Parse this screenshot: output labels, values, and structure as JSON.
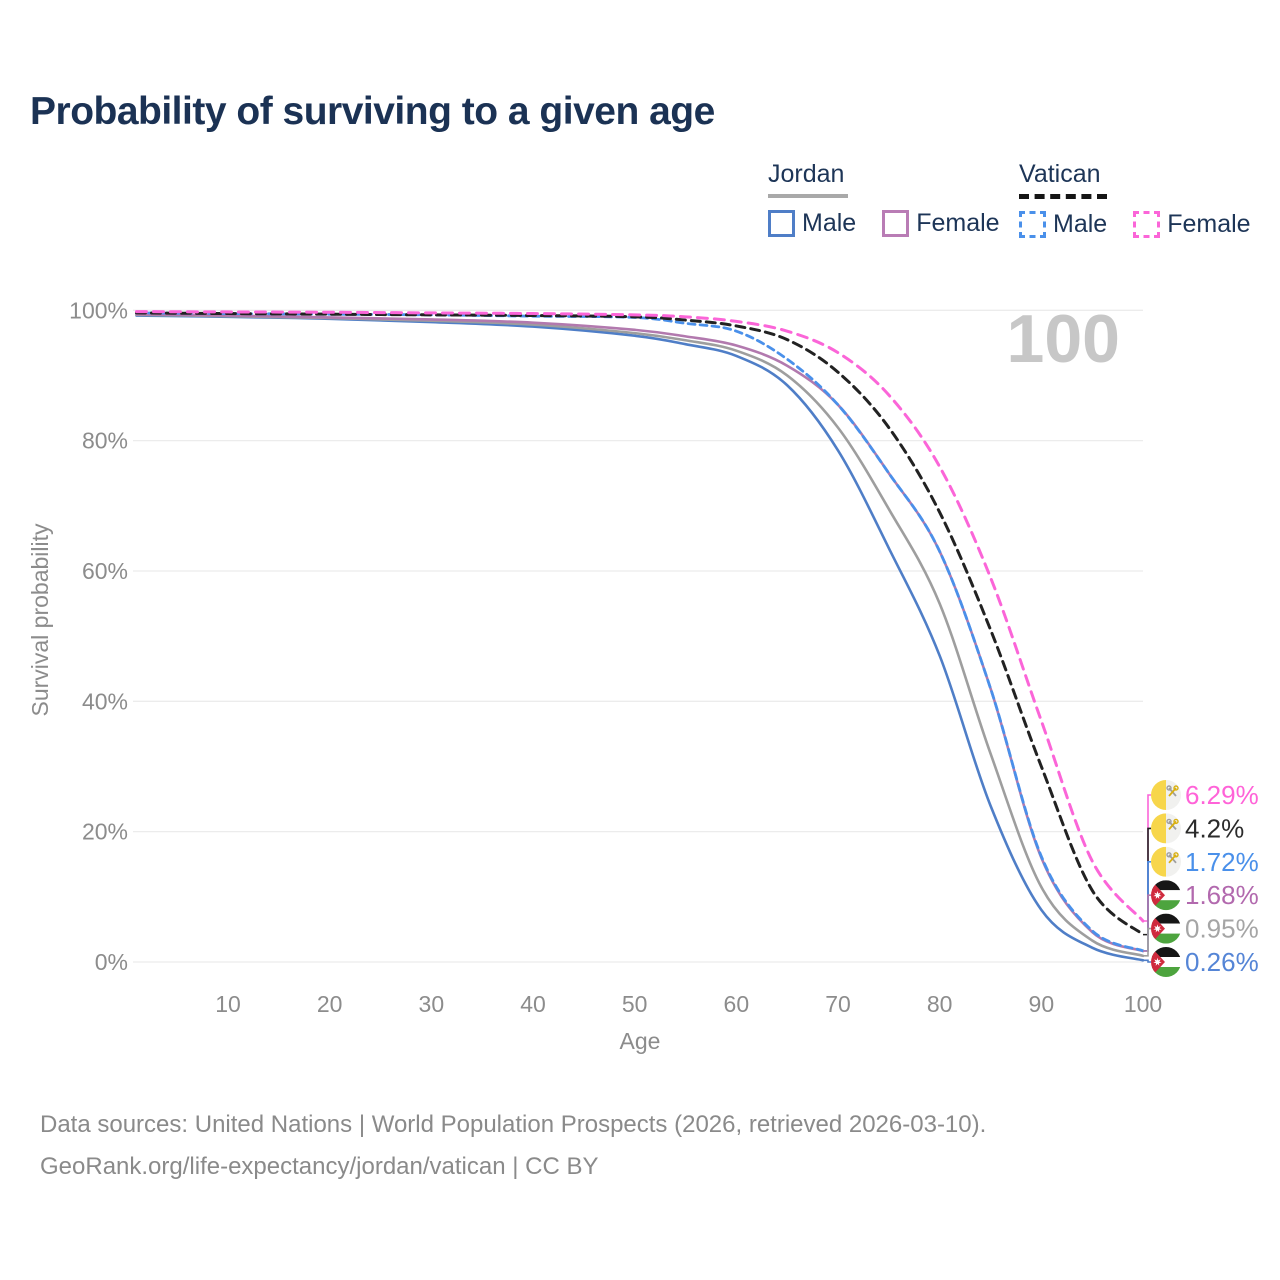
{
  "header": {
    "title": "Probability of surviving to a given age"
  },
  "watermark": "100",
  "legend": {
    "groups": [
      {
        "name": "Jordan",
        "line_style": "solid",
        "rule_color": "#a9a9a9",
        "items": [
          {
            "label": "Male",
            "swatch_color": "#4f7ec7",
            "dashed": false
          },
          {
            "label": "Female",
            "swatch_color": "#b97cb5",
            "dashed": false
          }
        ]
      },
      {
        "name": "Vatican",
        "line_style": "dashed",
        "rule_color": "#151515",
        "items": [
          {
            "label": "Male",
            "swatch_color": "#4a90ea",
            "dashed": true
          },
          {
            "label": "Female",
            "swatch_color": "#fb65d8",
            "dashed": true
          }
        ]
      }
    ]
  },
  "chart_data": {
    "type": "line",
    "title": "Probability of surviving to a given age",
    "xlabel": "Age",
    "ylabel": "Survival probability",
    "xlim": [
      1,
      100
    ],
    "ylim": [
      0,
      100
    ],
    "grid": true,
    "x_ticks": [
      10,
      20,
      30,
      40,
      50,
      60,
      70,
      80,
      90,
      100
    ],
    "y_ticks": [
      {
        "value": 0,
        "label": "0%"
      },
      {
        "value": 20,
        "label": "20%"
      },
      {
        "value": 40,
        "label": "40%"
      },
      {
        "value": 60,
        "label": "60%"
      },
      {
        "value": 80,
        "label": "80%"
      },
      {
        "value": 100,
        "label": "100%"
      }
    ],
    "x": [
      1,
      10,
      20,
      30,
      40,
      50,
      55,
      60,
      65,
      70,
      75,
      80,
      85,
      90,
      95,
      100
    ],
    "series": [
      {
        "id": "jordan-male",
        "name": "Jordan Male",
        "color": "#4f7ec7",
        "dashed": false,
        "width": 2.6,
        "flag": "jordan",
        "values": [
          99.2,
          99.0,
          98.7,
          98.2,
          97.5,
          96.1,
          94.8,
          93.0,
          88.5,
          78.5,
          63.5,
          47,
          24,
          8,
          2.2,
          0.26
        ],
        "end_label": "0.26%",
        "end_value": 0.26,
        "label_color": "#5585d6"
      },
      {
        "id": "jordan-combined",
        "name": "Jordan",
        "color": "#9e9e9e",
        "dashed": false,
        "width": 2.6,
        "flag": "jordan",
        "values": [
          99.3,
          99.1,
          98.8,
          98.4,
          97.8,
          96.5,
          95.4,
          93.8,
          90.0,
          82.0,
          69.5,
          55,
          32,
          11.5,
          3.3,
          0.95
        ],
        "end_label": "0.95%",
        "end_value": 0.95,
        "label_color": "#a5a5a5"
      },
      {
        "id": "jordan-female",
        "name": "Jordan Female",
        "color": "#b279ae",
        "dashed": false,
        "width": 2.6,
        "flag": "jordan",
        "values": [
          99.4,
          99.2,
          98.9,
          98.6,
          98.1,
          97.0,
          96.0,
          94.6,
          91.5,
          85.5,
          75.0,
          63,
          42,
          16,
          4.6,
          1.68
        ],
        "end_label": "1.68%",
        "end_value": 1.68,
        "label_color": "#b269ae"
      },
      {
        "id": "vatican-male",
        "name": "Vatican Male",
        "color": "#4a90ea",
        "dashed": true,
        "dash": "7 5",
        "width": 2.8,
        "flag": "vatican",
        "values": [
          99.6,
          99.5,
          99.4,
          99.3,
          99.1,
          98.9,
          98.0,
          96.8,
          92.5,
          85.5,
          75.0,
          63,
          42,
          16.2,
          4.8,
          1.72
        ],
        "end_label": "1.72%",
        "end_value": 1.72,
        "label_color": "#4a90ea"
      },
      {
        "id": "vatican-combined",
        "name": "Vatican",
        "color": "#222222",
        "dashed": true,
        "dash": "9 6",
        "width": 3,
        "flag": "vatican",
        "values": [
          99.6,
          99.5,
          99.4,
          99.3,
          99.2,
          99.0,
          98.5,
          97.6,
          95.5,
          90.5,
          82.0,
          69,
          51,
          30,
          11,
          4.2
        ],
        "end_label": "4.2%",
        "end_value": 4.2,
        "label_color": "#2b2b2b"
      },
      {
        "id": "vatican-female",
        "name": "Vatican Female",
        "color": "#fb65d8",
        "dashed": true,
        "dash": "10 7",
        "width": 3,
        "flag": "vatican",
        "values": [
          99.8,
          99.75,
          99.7,
          99.6,
          99.5,
          99.3,
          99.0,
          98.3,
          96.8,
          93.5,
          87.0,
          76,
          59,
          37,
          15.5,
          6.29
        ],
        "end_label": "6.29%",
        "end_value": 6.29,
        "label_color": "#ff63d8"
      }
    ]
  },
  "footer": {
    "line1": "Data sources: United Nations | World Population Prospects (2026, retrieved 2026-03-10).",
    "line2": "GeoRank.org/life-expectancy/jordan/vatican | CC BY"
  }
}
